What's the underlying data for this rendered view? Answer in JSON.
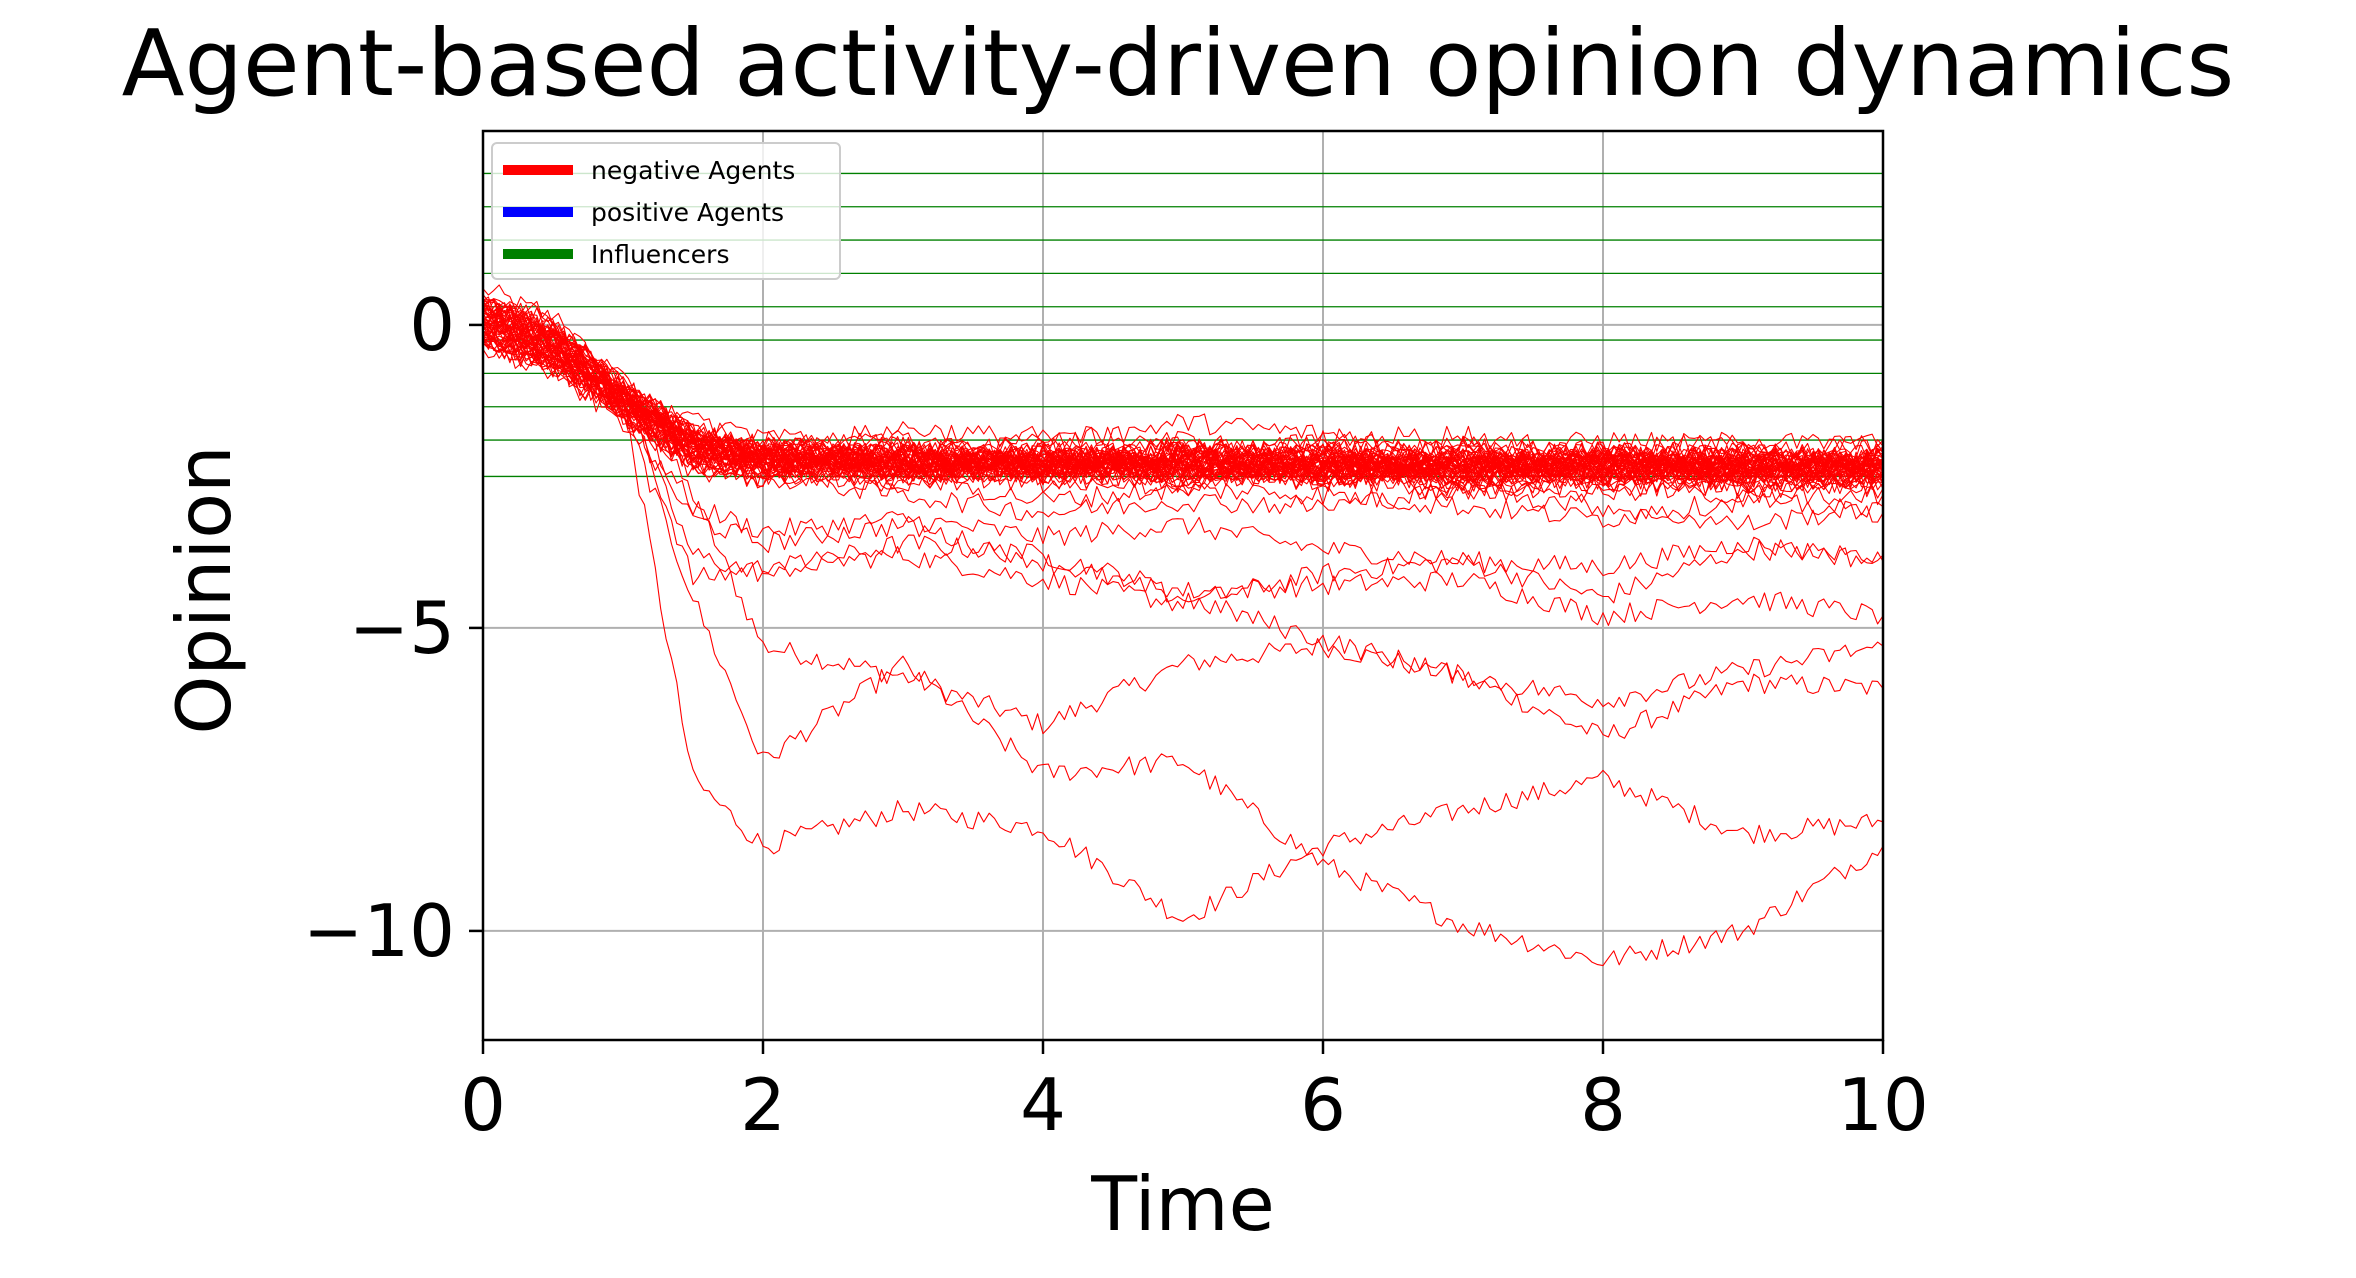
{
  "chart_data": {
    "type": "line",
    "title": "Agent-based activity-driven opinion dynamics",
    "xlabel": "Time",
    "ylabel": "Opinion",
    "xlim": [
      0,
      10
    ],
    "ylim": [
      -11.8,
      3.2
    ],
    "x_ticks": [
      0,
      2,
      4,
      6,
      8,
      10
    ],
    "x_tick_labels": [
      "0",
      "2",
      "4",
      "6",
      "8",
      "10"
    ],
    "y_ticks": [
      0,
      -5,
      -10
    ],
    "y_tick_labels": [
      "0",
      "−5",
      "−10"
    ],
    "grid": true,
    "legend_position": "top-left",
    "legend": [
      {
        "label": "negative Agents",
        "color": "#ff0000"
      },
      {
        "label": "positive Agents",
        "color": "#0000ff"
      },
      {
        "label": "Influencers",
        "color": "#008000"
      }
    ],
    "influencer_opinions": [
      2.5,
      1.95,
      1.4,
      0.85,
      0.3,
      -0.25,
      -0.8,
      -1.35,
      -1.9,
      -2.5
    ],
    "agent_count": 60,
    "x": [
      0,
      0.5,
      1,
      1.5,
      2,
      3,
      4,
      5,
      6,
      7,
      8,
      9,
      10
    ],
    "series": [
      {
        "values": [
          0.6,
          0.1,
          -1.0,
          -2.8,
          -5.3,
          -5.8,
          -6.6,
          -5.6,
          -5.3,
          -5.8,
          -6.8,
          -5.9,
          -6.0
        ]
      },
      {
        "values": [
          0.4,
          0.2,
          -1.2,
          -7.5,
          -8.6,
          -8.0,
          -8.3,
          -9.8,
          -8.6,
          -8.0,
          -7.5,
          -8.4,
          -8.2
        ]
      },
      {
        "values": [
          0.2,
          -0.2,
          -1.4,
          -4.5,
          -7.2,
          -5.6,
          -7.4,
          -7.2,
          -8.9,
          -9.9,
          -10.5,
          -10.0,
          -8.6
        ]
      },
      {
        "values": [
          0.1,
          -0.4,
          -1.0,
          -4.2,
          -4.0,
          -3.8,
          -4.2,
          -4.6,
          -4.1,
          -3.9,
          -4.5,
          -3.7,
          -3.8
        ]
      },
      {
        "values": [
          0.3,
          -0.5,
          -1.2,
          -3.8,
          -4.1,
          -3.6,
          -3.8,
          -4.4,
          -4.3,
          -4.2,
          -4.8,
          -4.5,
          -4.8
        ]
      },
      {
        "values": [
          -0.1,
          -0.6,
          -1.3,
          -3.0,
          -3.4,
          -3.2,
          -3.5,
          -3.3,
          -3.7,
          -3.9,
          -4.0,
          -3.6,
          -3.9
        ]
      },
      {
        "values": [
          0.0,
          -0.3,
          -1.5,
          -3.2,
          -3.6,
          -3.3,
          -3.9,
          -4.5,
          -5.2,
          -5.8,
          -6.2,
          -5.7,
          -5.3
        ]
      },
      {
        "values": [
          0.2,
          -0.4,
          -1.3,
          -2.0,
          -2.2,
          -2.1,
          -2.0,
          -1.6,
          -1.8,
          -2.1,
          -1.9,
          -2.0,
          -2.1
        ]
      },
      {
        "values": [
          -0.2,
          -0.5,
          -1.4,
          -2.1,
          -2.0,
          -2.3,
          -2.2,
          -2.0,
          -2.3,
          -2.5,
          -2.2,
          -2.3,
          -2.4
        ]
      },
      {
        "values": [
          0.4,
          -0.3,
          -1.2,
          -1.8,
          -2.3,
          -2.0,
          -2.4,
          -2.1,
          -2.0,
          -2.2,
          -2.6,
          -2.4,
          -2.2
        ]
      },
      {
        "values": [
          -0.3,
          -0.7,
          -1.5,
          -2.2,
          -2.6,
          -2.4,
          -2.6,
          -2.4,
          -2.5,
          -2.8,
          -2.4,
          -2.7,
          -2.6
        ]
      },
      {
        "values": [
          0.1,
          -0.2,
          -1.1,
          -1.9,
          -2.1,
          -1.7,
          -1.9,
          -2.3,
          -2.1,
          -2.0,
          -2.1,
          -1.9,
          -2.0
        ]
      },
      {
        "values": [
          0.3,
          -0.1,
          -1.0,
          -1.7,
          -1.9,
          -2.2,
          -1.8,
          -1.9,
          -2.2,
          -2.3,
          -2.0,
          -2.2,
          -1.9
        ]
      },
      {
        "values": [
          -0.4,
          -0.8,
          -1.6,
          -2.3,
          -2.4,
          -2.6,
          -2.3,
          -2.6,
          -2.4,
          -2.6,
          -2.8,
          -2.5,
          -2.7
        ]
      },
      {
        "values": [
          0.0,
          -0.5,
          -1.2,
          -2.0,
          -2.2,
          -2.5,
          -2.9,
          -2.7,
          -2.8,
          -3.0,
          -3.2,
          -2.9,
          -3.1
        ]
      },
      {
        "values": [
          0.2,
          -0.2,
          -0.9,
          -1.6,
          -1.8,
          -2.0,
          -2.1,
          -2.2,
          -1.9,
          -1.8,
          -2.2,
          -2.1,
          -2.3
        ]
      },
      {
        "values": [
          -0.1,
          -0.6,
          -1.4,
          -2.4,
          -2.5,
          -2.8,
          -3.1,
          -2.9,
          -3.0,
          -2.7,
          -3.0,
          -3.3,
          -3.0
        ]
      },
      {
        "values": [
          0.5,
          0.0,
          -1.0,
          -1.9,
          -2.0,
          -1.9,
          -2.3,
          -2.0,
          -2.2,
          -2.4,
          -2.3,
          -2.1,
          -2.5
        ]
      },
      {
        "values": [
          -0.2,
          -0.4,
          -1.3,
          -2.1,
          -2.3,
          -2.1,
          -2.0,
          -2.4,
          -2.6,
          -2.2,
          -2.4,
          -2.6,
          -2.2
        ]
      },
      {
        "values": [
          0.1,
          -0.3,
          -1.1,
          -1.8,
          -2.1,
          -2.3,
          -2.5,
          -2.3,
          -2.1,
          -2.5,
          -2.1,
          -2.3,
          -2.4
        ]
      },
      {
        "values": [
          0.3,
          -0.2,
          -1.2,
          -2.0,
          -2.2,
          -2.4,
          -2.2,
          -2.1,
          -2.4,
          -2.1,
          -2.2,
          -2.4,
          -2.1
        ]
      },
      {
        "values": [
          -0.3,
          -0.7,
          -1.4,
          -2.2,
          -2.4,
          -2.2,
          -2.4,
          -2.6,
          -2.3,
          -2.4,
          -2.5,
          -2.2,
          -2.6
        ]
      },
      {
        "values": [
          0.0,
          -0.4,
          -1.2,
          -1.9,
          -2.3,
          -2.5,
          -2.3,
          -2.2,
          -2.5,
          -2.7,
          -2.6,
          -2.8,
          -2.8
        ]
      },
      {
        "values": [
          0.2,
          -0.1,
          -1.1,
          -2.1,
          -2.1,
          -2.0,
          -2.2,
          -2.4,
          -2.2,
          -2.0,
          -2.3,
          -2.2,
          -2.3
        ]
      },
      {
        "values": [
          -0.1,
          -0.5,
          -1.3,
          -2.0,
          -2.4,
          -2.3,
          -2.1,
          -2.3,
          -2.6,
          -2.4,
          -2.1,
          -2.5,
          -2.2
        ]
      },
      {
        "values": [
          0.4,
          -0.1,
          -1.0,
          -1.8,
          -2.0,
          -2.2,
          -2.4,
          -2.0,
          -2.1,
          -2.3,
          -2.4,
          -2.0,
          -2.4
        ]
      },
      {
        "values": [
          -0.2,
          -0.6,
          -1.5,
          -2.3,
          -2.5,
          -2.4,
          -2.5,
          -2.7,
          -2.4,
          -2.6,
          -2.3,
          -2.6,
          -2.5
        ]
      },
      {
        "values": [
          0.1,
          -0.3,
          -1.2,
          -2.0,
          -2.1,
          -2.4,
          -2.2,
          -2.5,
          -2.3,
          -2.2,
          -2.5,
          -2.4,
          -2.0
        ]
      },
      {
        "values": [
          0.3,
          -0.2,
          -1.1,
          -1.7,
          -2.2,
          -2.1,
          -2.3,
          -2.1,
          -2.0,
          -2.4,
          -2.2,
          -2.1,
          -2.3
        ]
      },
      {
        "values": [
          -0.3,
          -0.6,
          -1.4,
          -2.2,
          -2.3,
          -2.5,
          -2.4,
          -2.3,
          -2.5,
          -2.5,
          -2.7,
          -2.5,
          -2.7
        ]
      },
      {
        "values": [
          0.0,
          -0.4,
          -1.3,
          -2.0,
          -2.2,
          -2.2,
          -2.6,
          -2.4,
          -2.2,
          -2.3,
          -2.2,
          -2.6,
          -2.4
        ]
      },
      {
        "values": [
          0.2,
          -0.2,
          -1.0,
          -1.9,
          -2.0,
          -2.3,
          -2.1,
          -2.2,
          -2.4,
          -2.1,
          -2.4,
          -2.3,
          -2.2
        ]
      },
      {
        "values": [
          -0.1,
          -0.5,
          -1.3,
          -2.1,
          -2.4,
          -2.1,
          -2.3,
          -2.5,
          -2.1,
          -2.6,
          -2.3,
          -2.2,
          -2.6
        ]
      },
      {
        "values": [
          0.4,
          0.0,
          -1.1,
          -1.9,
          -2.1,
          -2.3,
          -2.2,
          -2.0,
          -2.3,
          -2.2,
          -2.1,
          -2.4,
          -2.1
        ]
      },
      {
        "values": [
          -0.2,
          -0.6,
          -1.4,
          -2.2,
          -2.2,
          -2.4,
          -2.5,
          -2.4,
          -2.4,
          -2.4,
          -2.6,
          -2.3,
          -2.5
        ]
      },
      {
        "values": [
          0.1,
          -0.4,
          -1.2,
          -2.0,
          -2.3,
          -2.2,
          -2.1,
          -2.3,
          -2.6,
          -2.3,
          -2.4,
          -2.5,
          -2.3
        ]
      },
      {
        "values": [
          0.3,
          -0.1,
          -1.0,
          -1.8,
          -2.1,
          -2.0,
          -2.4,
          -2.2,
          -2.2,
          -2.0,
          -2.2,
          -2.1,
          -2.4
        ]
      },
      {
        "values": [
          -0.3,
          -0.7,
          -1.5,
          -2.3,
          -2.5,
          -2.6,
          -2.3,
          -2.6,
          -2.3,
          -2.7,
          -2.5,
          -2.7,
          -2.5
        ]
      },
      {
        "values": [
          0.0,
          -0.3,
          -1.2,
          -2.1,
          -2.2,
          -2.1,
          -2.5,
          -2.1,
          -2.5,
          -2.3,
          -2.3,
          -2.2,
          -2.2
        ]
      },
      {
        "values": [
          0.2,
          -0.2,
          -1.1,
          -1.9,
          -2.0,
          -2.4,
          -2.2,
          -2.3,
          -2.1,
          -2.4,
          -2.1,
          -2.4,
          -2.6
        ]
      },
      {
        "values": [
          -0.1,
          -0.5,
          -1.3,
          -2.0,
          -2.3,
          -2.2,
          -2.3,
          -2.4,
          -2.4,
          -2.2,
          -2.6,
          -2.3,
          -2.3
        ]
      },
      {
        "values": [
          0.4,
          -0.1,
          -1.0,
          -1.8,
          -2.1,
          -2.3,
          -2.4,
          -2.1,
          -2.3,
          -2.5,
          -2.2,
          -2.5,
          -2.4
        ]
      },
      {
        "values": [
          -0.2,
          -0.6,
          -1.4,
          -2.2,
          -2.4,
          -2.3,
          -2.2,
          -2.5,
          -2.5,
          -2.1,
          -2.4,
          -2.2,
          -2.2
        ]
      },
      {
        "values": [
          0.1,
          -0.3,
          -1.2,
          -2.0,
          -2.2,
          -2.5,
          -2.3,
          -2.2,
          -2.2,
          -2.6,
          -2.3,
          -2.6,
          -2.5
        ]
      },
      {
        "values": [
          0.3,
          -0.2,
          -1.1,
          -1.9,
          -2.1,
          -2.1,
          -2.5,
          -2.3,
          -2.4,
          -2.3,
          -2.5,
          -2.1,
          -2.3
        ]
      },
      {
        "values": [
          -0.3,
          -0.6,
          -1.4,
          -2.1,
          -2.5,
          -2.4,
          -2.3,
          -2.4,
          -2.3,
          -2.4,
          -2.2,
          -2.4,
          -2.1
        ]
      },
      {
        "values": [
          0.0,
          -0.4,
          -1.2,
          -2.0,
          -2.2,
          -2.3,
          -2.2,
          -2.2,
          -2.5,
          -2.2,
          -2.4,
          -2.3,
          -2.5
        ]
      },
      {
        "values": [
          0.2,
          -0.1,
          -1.0,
          -1.8,
          -2.0,
          -2.2,
          -2.4,
          -2.4,
          -2.1,
          -2.5,
          -2.3,
          -2.5,
          -2.3
        ]
      },
      {
        "values": [
          -0.1,
          -0.5,
          -1.3,
          -2.1,
          -2.3,
          -2.4,
          -2.1,
          -2.3,
          -2.4,
          -2.3,
          -2.1,
          -2.2,
          -2.4
        ]
      },
      {
        "values": [
          0.4,
          0.0,
          -1.1,
          -1.9,
          -2.1,
          -2.1,
          -2.3,
          -2.5,
          -2.3,
          -2.1,
          -2.4,
          -2.4,
          -2.2
        ]
      },
      {
        "values": [
          -0.2,
          -0.6,
          -1.4,
          -2.2,
          -2.4,
          -2.5,
          -2.4,
          -2.1,
          -2.2,
          -2.4,
          -2.3,
          -2.3,
          -2.6
        ]
      },
      {
        "values": [
          0.1,
          -0.4,
          -1.2,
          -2.0,
          -2.2,
          -2.2,
          -2.3,
          -2.3,
          -2.5,
          -2.3,
          -2.2,
          -2.5,
          -2.3
        ]
      },
      {
        "values": [
          0.3,
          -0.2,
          -1.1,
          -1.9,
          -2.1,
          -2.3,
          -2.2,
          -2.4,
          -2.2,
          -2.5,
          -2.4,
          -2.2,
          -2.4
        ]
      },
      {
        "values": [
          -0.3,
          -0.7,
          -1.5,
          -2.3,
          -2.4,
          -2.2,
          -2.5,
          -2.2,
          -2.4,
          -2.2,
          -2.5,
          -2.4,
          -2.2
        ]
      },
      {
        "values": [
          0.0,
          -0.3,
          -1.2,
          -2.0,
          -2.2,
          -2.4,
          -2.1,
          -2.4,
          -2.3,
          -2.4,
          -2.1,
          -2.3,
          -2.5
        ]
      },
      {
        "values": [
          0.2,
          -0.2,
          -1.0,
          -1.8,
          -2.1,
          -2.1,
          -2.4,
          -2.2,
          -2.4,
          -2.2,
          -2.3,
          -2.4,
          -2.3
        ]
      },
      {
        "values": [
          -0.1,
          -0.5,
          -1.3,
          -2.1,
          -2.3,
          -2.3,
          -2.3,
          -2.3,
          -2.2,
          -2.3,
          -2.4,
          -2.2,
          -2.4
        ]
      },
      {
        "values": [
          0.4,
          -0.1,
          -1.0,
          -1.9,
          -2.0,
          -2.2,
          -2.2,
          -2.1,
          -2.3,
          -2.4,
          -2.2,
          -2.3,
          -2.2
        ]
      },
      {
        "values": [
          -0.2,
          -0.6,
          -1.4,
          -2.2,
          -2.4,
          -2.4,
          -2.4,
          -2.5,
          -2.4,
          -2.3,
          -2.5,
          -2.4,
          -2.5
        ]
      },
      {
        "values": [
          0.1,
          -0.3,
          -1.2,
          -2.0,
          -2.2,
          -2.3,
          -2.3,
          -2.3,
          -2.3,
          -2.5,
          -2.3,
          -2.4,
          -2.3
        ]
      }
    ]
  }
}
